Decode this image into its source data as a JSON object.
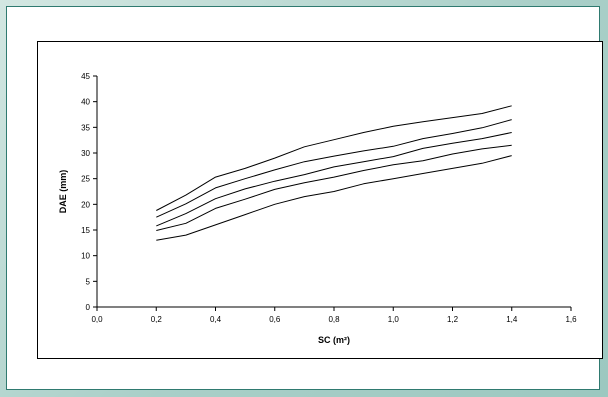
{
  "chart_data": {
    "type": "line",
    "xlabel": "SC (m²)",
    "ylabel": "DAE (mm)",
    "xlim": [
      0.0,
      1.6
    ],
    "ylim": [
      0,
      45
    ],
    "x_ticks": [
      "0,0",
      "0,2",
      "0,4",
      "0,6",
      "0,8",
      "1,0",
      "1,2",
      "1,4",
      "1,6"
    ],
    "y_ticks": [
      "0",
      "5",
      "10",
      "15",
      "20",
      "25",
      "30",
      "35",
      "40",
      "45"
    ],
    "x": [
      0.2,
      0.3,
      0.4,
      0.5,
      0.6,
      0.7,
      0.8,
      0.9,
      1.0,
      1.1,
      1.2,
      1.3,
      1.4
    ],
    "series": [
      {
        "values": [
          18.8,
          21.8,
          25.3,
          27.0,
          29.0,
          31.2,
          32.6,
          34.0,
          35.2,
          36.1,
          36.9,
          37.7,
          39.2
        ]
      },
      {
        "values": [
          17.5,
          20.1,
          23.2,
          25.0,
          26.7,
          28.3,
          29.4,
          30.4,
          31.3,
          32.8,
          33.8,
          34.9,
          36.5
        ]
      },
      {
        "values": [
          15.8,
          18.2,
          21.1,
          23.0,
          24.5,
          25.8,
          27.3,
          28.3,
          29.3,
          30.9,
          31.9,
          32.8,
          34.0
        ]
      },
      {
        "values": [
          14.9,
          16.3,
          19.2,
          21.0,
          22.9,
          24.2,
          25.3,
          26.6,
          27.7,
          28.5,
          29.8,
          30.8,
          31.5
        ]
      },
      {
        "values": [
          13.0,
          14.0,
          16.0,
          18.0,
          20.0,
          21.5,
          22.5,
          24.0,
          25.0,
          26.0,
          27.0,
          28.0,
          29.5
        ]
      }
    ],
    "line_color": "#000000",
    "grid": false,
    "legend": "none"
  }
}
